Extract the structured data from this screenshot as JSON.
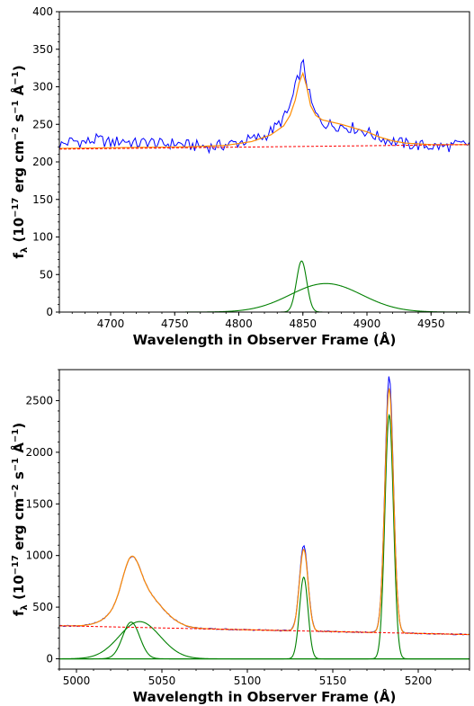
{
  "chart_data": [
    {
      "type": "line",
      "xlabel": "Wavelength in Observer Frame (Å)",
      "ylabel_html": "f_λ (10^−17 erg cm^−2 s^−1 Å^−1)",
      "ylabel": {
        "main": "f",
        "sub": "λ",
        "open": " (10",
        "exp1": "−17",
        "mid1": " erg cm",
        "exp2": "−2",
        "mid2": " s",
        "exp3": "−1",
        "mid3": " Å",
        "exp4": "−1",
        "close": ")"
      },
      "xlim": [
        4660,
        4980
      ],
      "ylim": [
        0,
        400
      ],
      "xticks": [
        4700,
        4750,
        4800,
        4850,
        4900,
        4950
      ],
      "yticks": [
        0,
        50,
        100,
        150,
        200,
        250,
        300,
        350,
        400
      ],
      "grid": false,
      "colors": {
        "data": "#0000ff",
        "model": "#ff8c00",
        "continuum": "#ff0000",
        "components": "#008000"
      },
      "continuum": {
        "x": [
          4660,
          4980
        ],
        "y": [
          217,
          223
        ]
      },
      "data_trace": {
        "x": [
          4660,
          4670,
          4680,
          4690,
          4700,
          4710,
          4720,
          4730,
          4740,
          4750,
          4760,
          4770,
          4780,
          4790,
          4800,
          4810,
          4820,
          4830,
          4838,
          4842,
          4845,
          4848,
          4850,
          4852,
          4855,
          4858,
          4862,
          4866,
          4870,
          4880,
          4890,
          4900,
          4910,
          4920,
          4930,
          4940,
          4950,
          4960,
          4970,
          4980
        ],
        "y": [
          222,
          228,
          226,
          230,
          225,
          229,
          224,
          227,
          223,
          225,
          222,
          221,
          220,
          223,
          226,
          230,
          234,
          248,
          265,
          285,
          305,
          322,
          333,
          315,
          290,
          270,
          258,
          252,
          250,
          248,
          245,
          240,
          232,
          228,
          224,
          222,
          221,
          220,
          222,
          224
        ]
      },
      "model_trace": {
        "x": [
          4660,
          4760,
          4790,
          4810,
          4825,
          4835,
          4840,
          4844,
          4847,
          4850,
          4853,
          4856,
          4860,
          4865,
          4870,
          4880,
          4890,
          4900,
          4910,
          4920,
          4930,
          4940,
          4950,
          4980
        ],
        "y": [
          218,
          220,
          222,
          227,
          236,
          248,
          262,
          282,
          305,
          318,
          300,
          275,
          262,
          256,
          254,
          250,
          245,
          240,
          233,
          228,
          225,
          224,
          223,
          223
        ]
      },
      "components": [
        {
          "center": 4849,
          "sigma": 4,
          "amp": 68
        },
        {
          "center": 4868,
          "sigma": 28,
          "amp": 38
        }
      ]
    },
    {
      "type": "line",
      "xlabel": "Wavelength in Observer Frame (Å)",
      "ylabel": {
        "main": "f",
        "sub": "λ",
        "open": " (10",
        "exp1": "−17",
        "mid1": " erg cm",
        "exp2": "−2",
        "mid2": " s",
        "exp3": "−1",
        "mid3": " Å",
        "exp4": "−1",
        "close": ")"
      },
      "xlim": [
        4990,
        5230
      ],
      "ylim": [
        -100,
        2800
      ],
      "xticks": [
        5000,
        5050,
        5100,
        5150,
        5200
      ],
      "yticks": [
        0,
        500,
        1000,
        1500,
        2000,
        2500
      ],
      "grid": false,
      "colors": {
        "data": "#0000ff",
        "model": "#ff8c00",
        "continuum": "#ff0000",
        "components": "#008000"
      },
      "continuum": {
        "x": [
          4990,
          5230
        ],
        "y": [
          320,
          235
        ]
      },
      "components": [
        {
          "center": 5032,
          "sigma": 5,
          "amp": 355
        },
        {
          "center": 5037,
          "sigma": 12,
          "amp": 360
        },
        {
          "center": 5133,
          "sigma": 2.5,
          "amp": 790
        },
        {
          "center": 5183,
          "sigma": 2.5,
          "amp": 2360
        }
      ]
    }
  ]
}
